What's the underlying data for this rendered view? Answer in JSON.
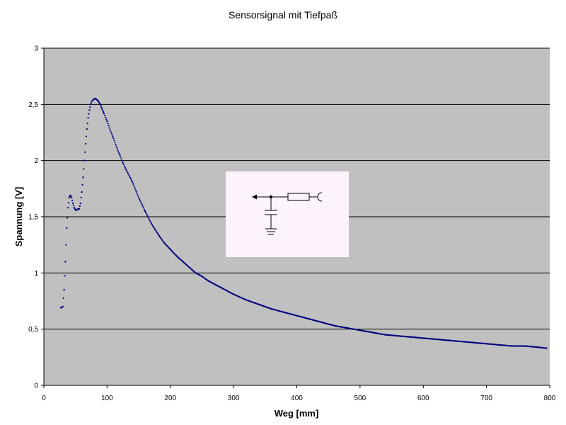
{
  "chart_data": {
    "type": "scatter",
    "title": "Sensorsignal mit Tiefpaß",
    "xlabel": "Weg [mm]",
    "ylabel": "Spannung [V]",
    "xlim": [
      0,
      800
    ],
    "ylim": [
      0,
      3
    ],
    "x_ticks": [
      "0",
      "100",
      "200",
      "300",
      "400",
      "500",
      "600",
      "700",
      "800"
    ],
    "y_ticks": [
      "0",
      "0,5",
      "1",
      "1,5",
      "2",
      "2,5",
      "3"
    ],
    "grid": "horizontal",
    "legend": "none",
    "marker_color": "#000080",
    "series": [
      {
        "x": [
          27,
          30,
          32,
          34,
          36,
          38,
          40,
          42,
          44,
          46,
          48,
          50,
          52,
          54,
          56,
          58,
          60,
          62,
          64,
          66,
          68,
          70,
          72,
          74,
          76,
          78,
          80,
          82,
          84,
          86,
          88,
          90,
          92,
          95,
          100,
          105,
          110,
          115,
          120,
          125,
          130,
          140,
          150,
          160,
          170,
          180,
          190,
          200,
          210,
          220,
          230,
          240,
          250,
          260,
          280,
          300,
          320,
          340,
          360,
          380,
          400,
          420,
          440,
          460,
          480,
          500,
          520,
          540,
          560,
          580,
          600,
          620,
          640,
          660,
          680,
          700,
          720,
          740,
          760,
          780,
          795
        ],
        "y": [
          0.69,
          0.7,
          0.85,
          1.1,
          1.4,
          1.58,
          1.67,
          1.69,
          1.67,
          1.62,
          1.58,
          1.56,
          1.56,
          1.57,
          1.57,
          1.62,
          1.72,
          1.85,
          2.0,
          2.15,
          2.28,
          2.38,
          2.45,
          2.5,
          2.53,
          2.54,
          2.55,
          2.55,
          2.54,
          2.53,
          2.51,
          2.49,
          2.46,
          2.42,
          2.35,
          2.27,
          2.2,
          2.12,
          2.05,
          1.98,
          1.92,
          1.81,
          1.67,
          1.55,
          1.44,
          1.35,
          1.27,
          1.21,
          1.15,
          1.1,
          1.05,
          1.0,
          0.97,
          0.93,
          0.87,
          0.81,
          0.76,
          0.72,
          0.68,
          0.65,
          0.62,
          0.59,
          0.56,
          0.53,
          0.51,
          0.49,
          0.47,
          0.45,
          0.44,
          0.43,
          0.42,
          0.41,
          0.4,
          0.39,
          0.38,
          0.37,
          0.36,
          0.35,
          0.35,
          0.34,
          0.33
        ]
      }
    ]
  }
}
